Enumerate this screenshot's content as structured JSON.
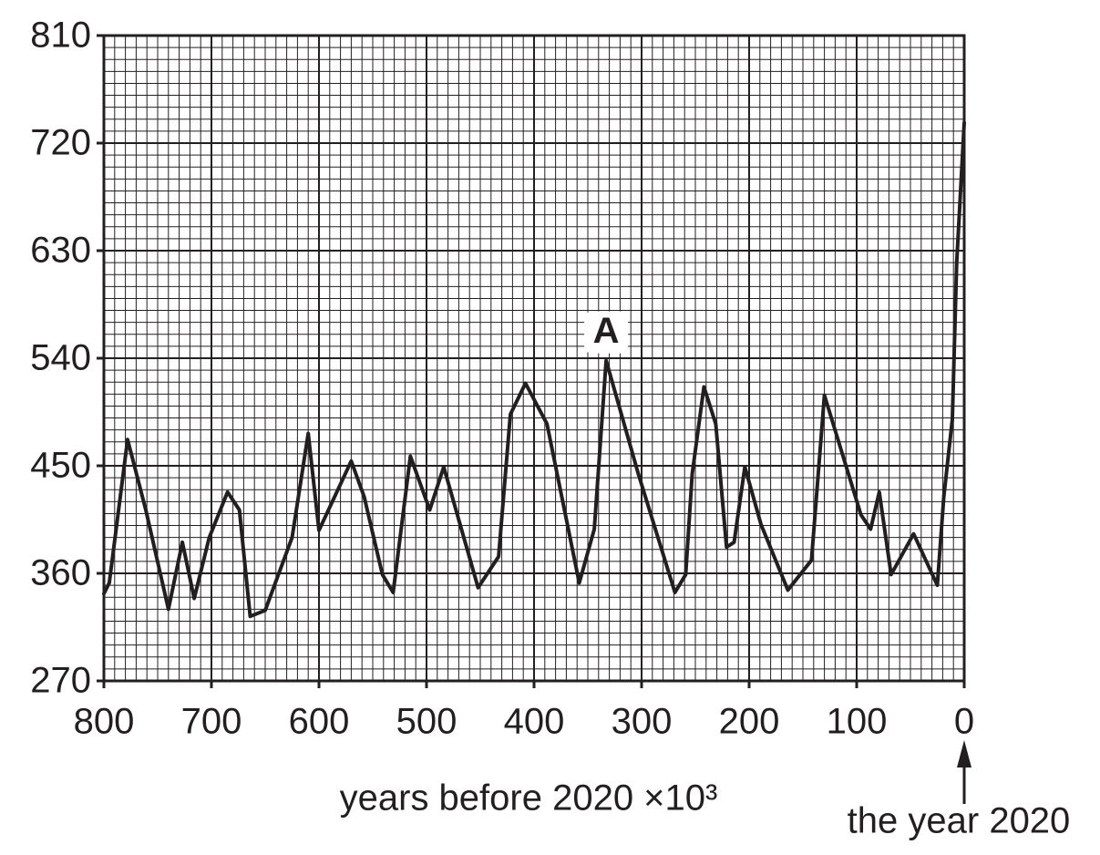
{
  "chart_data": {
    "type": "line",
    "xlabel": "years before 2020 ×10³",
    "annotations": [
      "A",
      "the year 2020"
    ],
    "x": [
      800,
      795,
      778,
      761,
      740,
      727,
      716,
      702,
      685,
      674,
      664,
      650,
      625,
      610,
      600,
      570,
      558,
      541,
      531,
      515,
      497,
      484,
      452,
      433,
      422,
      408,
      388,
      358,
      344,
      333,
      303,
      269,
      259,
      253,
      242,
      231,
      221,
      214,
      204,
      189,
      164,
      142,
      130,
      96,
      87,
      79,
      68,
      47,
      25,
      19,
      11,
      7,
      0
    ],
    "values": [
      343,
      352,
      472,
      413,
      330,
      386,
      339,
      390,
      428,
      413,
      324,
      329,
      390,
      477,
      396,
      454,
      424,
      359,
      344,
      458,
      413,
      449,
      348,
      374,
      493,
      519,
      485,
      352,
      397,
      538,
      443,
      344,
      359,
      443,
      516,
      485,
      382,
      386,
      449,
      401,
      346,
      371,
      509,
      409,
      397,
      428,
      359,
      393,
      350,
      424,
      489,
      619,
      737
    ],
    "color": "#231f20",
    "xlim": [
      800,
      0
    ],
    "ylim": [
      270,
      810
    ],
    "xticks": [
      800,
      700,
      600,
      500,
      400,
      300,
      200,
      100,
      0
    ],
    "yticks": [
      270,
      360,
      450,
      540,
      630,
      720,
      810
    ],
    "grid": true,
    "minor_grid": true
  }
}
